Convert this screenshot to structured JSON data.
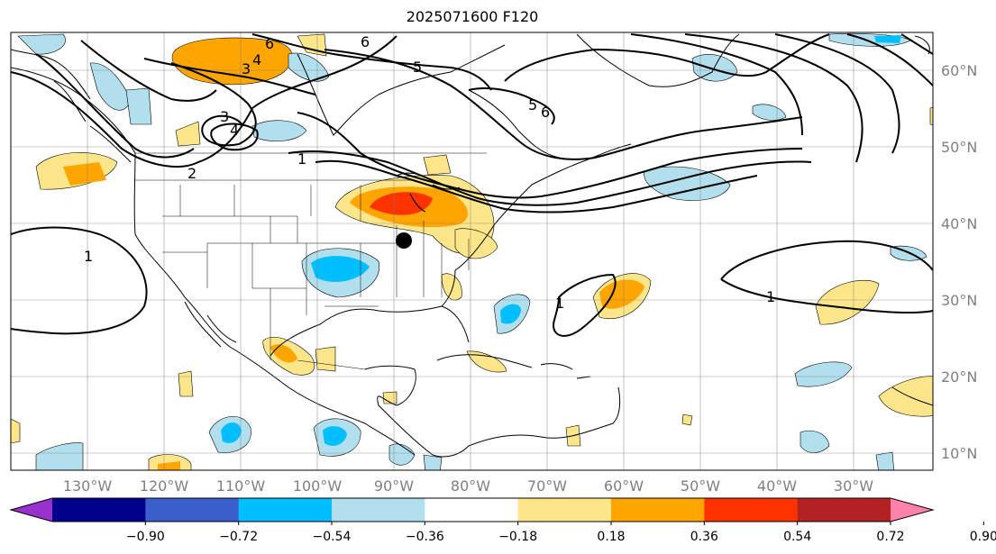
{
  "title": "2025071600 F120",
  "lat_labels": [
    "60°N",
    "50°N",
    "40°N",
    "30°N",
    "20°N",
    "10°N"
  ],
  "lon_labels": [
    "130°W",
    "120°W",
    "110°W",
    "100°W",
    "90°W",
    "80°W",
    "70°W",
    "60°W",
    "50°W",
    "40°W",
    "30°W"
  ],
  "colorbar": {
    "ticks": [
      "−0.90",
      "−0.72",
      "−0.54",
      "−0.36",
      "−0.18",
      "0.18",
      "0.36",
      "0.54",
      "0.72",
      "0.90"
    ],
    "colors": [
      "#9932cc",
      "#00008b",
      "#3a5fcd",
      "#00bfff",
      "#b2dfee",
      "#ffffff",
      "#fde68a",
      "#ffa500",
      "#ff3300",
      "#b22222",
      "#ff82ab"
    ]
  },
  "contour_labels": [
    "6",
    "3",
    "4",
    "6",
    "5",
    "3",
    "4",
    "1",
    "2",
    "5",
    "6",
    "1",
    "1",
    "1"
  ],
  "marker": {
    "lon": -89.0,
    "lat": 38.0
  }
}
